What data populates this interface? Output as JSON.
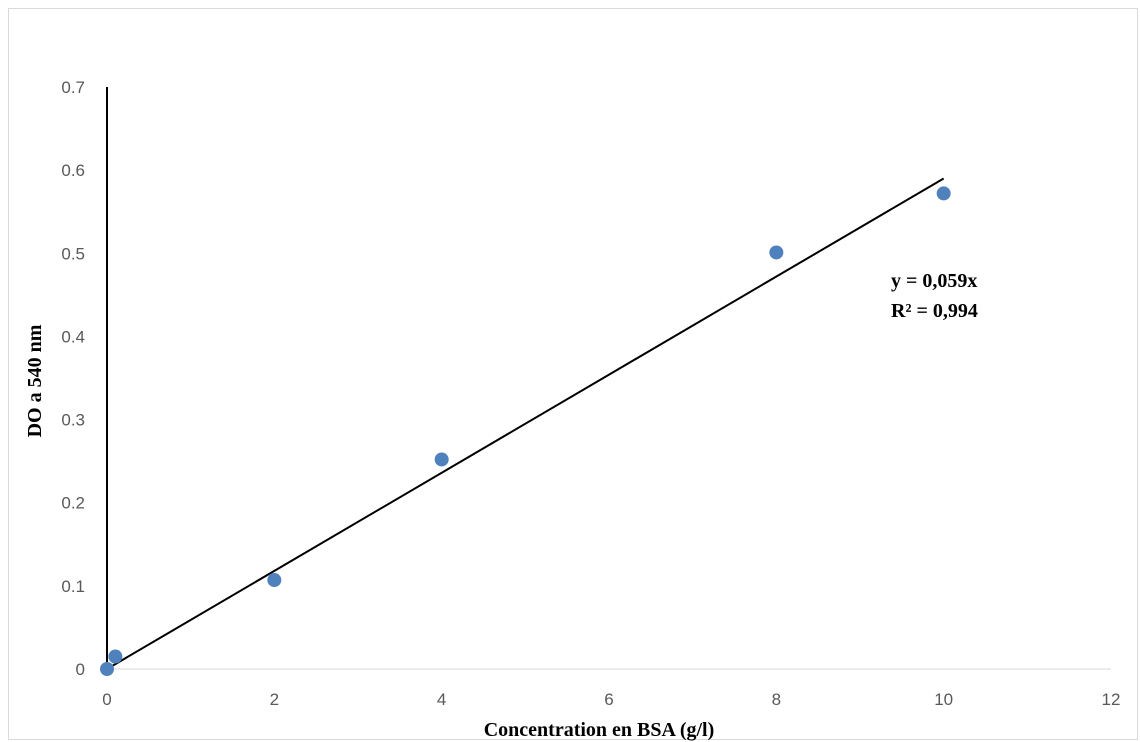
{
  "chart_data": {
    "type": "scatter",
    "xlabel": "Concentration en BSA (g/l)",
    "ylabel": "DO a 540 nm",
    "xlim": [
      0,
      12
    ],
    "ylim": [
      0,
      0.7
    ],
    "x_ticks": [
      "0",
      "2",
      "4",
      "6",
      "8",
      "10",
      "12"
    ],
    "y_ticks": [
      "0",
      "0.1",
      "0.2",
      "0.3",
      "0.4",
      "0.5",
      "0.6",
      "0.7"
    ],
    "grid": false,
    "series": [
      {
        "x": [
          0,
          0.1,
          2,
          4,
          8,
          10
        ],
        "y": [
          0,
          0.015,
          0.107,
          0.252,
          0.501,
          0.572
        ],
        "color": "#4f81bd"
      }
    ],
    "trendline": {
      "slope": 0.059,
      "intercept": 0,
      "x_range": [
        0,
        10
      ],
      "color": "#000000"
    },
    "annotations": {
      "equation": "y = 0,059x",
      "r_squared": "R² = 0,994"
    }
  }
}
